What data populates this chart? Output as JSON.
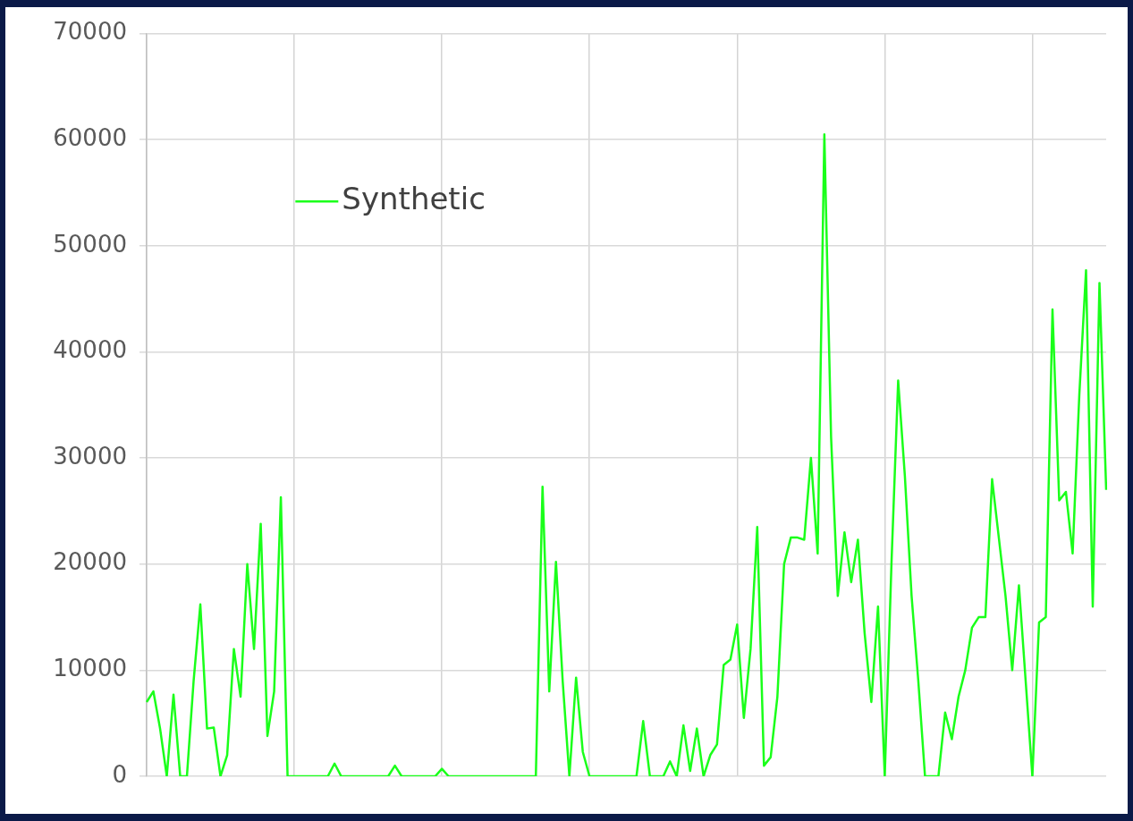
{
  "chart_data": {
    "type": "line",
    "categories": [
      null,
      null,
      null,
      null,
      null,
      null,
      null,
      null,
      null,
      null,
      null,
      null,
      null,
      null,
      null,
      null,
      null,
      null,
      null,
      null,
      null,
      null,
      null,
      null,
      null,
      null,
      null,
      null,
      null,
      null,
      null,
      null,
      null,
      null,
      null,
      null,
      null,
      null,
      null,
      null,
      null,
      null,
      null,
      null,
      null,
      null,
      null,
      null,
      null,
      null,
      null,
      null,
      null,
      null,
      null,
      null,
      null,
      null,
      null,
      null,
      null,
      null,
      null,
      null,
      null,
      null,
      null,
      null,
      null,
      null,
      null,
      null,
      null,
      null,
      null,
      null,
      null,
      null,
      null,
      null,
      null,
      null,
      null,
      null,
      null,
      null,
      null,
      null,
      null,
      null,
      null,
      null,
      null,
      null,
      null,
      null,
      null,
      null,
      null,
      null,
      null,
      null,
      null,
      null,
      null,
      null,
      null,
      null,
      null,
      null,
      null,
      null,
      null,
      null,
      null,
      null,
      null,
      null,
      null,
      null,
      null,
      null,
      null,
      null,
      null,
      null,
      null,
      null,
      null,
      null,
      null,
      null,
      null,
      null,
      null,
      null,
      null,
      null,
      null,
      null,
      null,
      null,
      null,
      null
    ],
    "series": [
      {
        "name": "Synthetic",
        "color": "#1aff1a",
        "values": [
          7000,
          8000,
          4500,
          0,
          7700,
          0,
          0,
          9000,
          16200,
          4500,
          4600,
          0,
          2000,
          12000,
          7500,
          20000,
          12000,
          23800,
          3800,
          8000,
          26300,
          0,
          0,
          0,
          0,
          0,
          0,
          0,
          1200,
          0,
          0,
          0,
          0,
          0,
          0,
          0,
          0,
          1000,
          0,
          0,
          0,
          0,
          0,
          0,
          700,
          0,
          0,
          0,
          0,
          0,
          0,
          0,
          0,
          0,
          0,
          0,
          0,
          0,
          0,
          27300,
          8000,
          20200,
          9000,
          0,
          9300,
          2300,
          0,
          0,
          0,
          0,
          0,
          0,
          0,
          0,
          5200,
          0,
          0,
          0,
          1400,
          0,
          4800,
          500,
          4500,
          0,
          2000,
          3000,
          10500,
          11000,
          14300,
          5500,
          12000,
          23500,
          1000,
          1800,
          7500,
          20000,
          22500,
          22500,
          22300,
          30000,
          21000,
          60500,
          32000,
          17000,
          23000,
          18300,
          22300,
          13500,
          7000,
          16000,
          0,
          20000,
          37300,
          28300,
          17000,
          9000,
          0,
          0,
          0,
          6000,
          3500,
          7500,
          10000,
          14000,
          15000,
          15000,
          28000,
          22500,
          17000,
          10000,
          18000,
          9000,
          0,
          14500,
          15000,
          44000,
          26000,
          26800,
          21000,
          36000,
          47700,
          16000,
          46500,
          27000
        ]
      }
    ],
    "ylim": [
      0,
      70000
    ],
    "yticks": [
      0,
      10000,
      20000,
      30000,
      40000,
      50000,
      60000,
      70000
    ],
    "grid": true,
    "legend": "top left",
    "marker": "none",
    "line_style": "solid"
  }
}
